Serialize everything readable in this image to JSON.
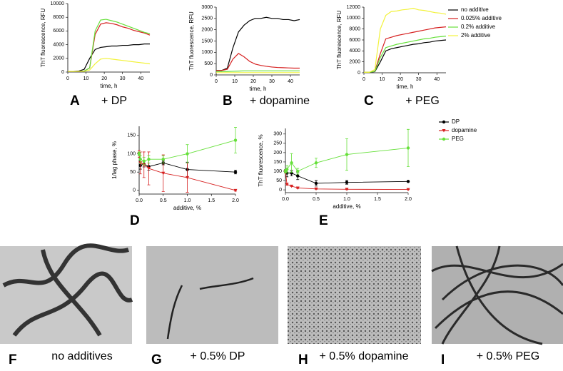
{
  "chart_data": [
    {
      "type": "line",
      "panel_label": "A",
      "caption": "+ DP",
      "xlabel": "time, h",
      "ylabel": "ThT fluorescence, RFU",
      "x": [
        0,
        3,
        6,
        9,
        12,
        15,
        18,
        21,
        24,
        27,
        30,
        33,
        36,
        39,
        42,
        45
      ],
      "xlim": [
        0,
        45
      ],
      "xticks": [
        0,
        10,
        20,
        30,
        40
      ],
      "ylim": [
        0,
        10000
      ],
      "yticks": [
        0,
        2000,
        4000,
        6000,
        8000,
        10000
      ],
      "series": [
        {
          "color": "#000000",
          "values": [
            100,
            100,
            150,
            400,
            2000,
            3300,
            3600,
            3700,
            3800,
            3800,
            3900,
            3900,
            4000,
            4000,
            4100,
            4100
          ]
        },
        {
          "color": "#d62020",
          "values": [
            100,
            100,
            100,
            150,
            600,
            5500,
            7000,
            7200,
            7100,
            6900,
            6600,
            6400,
            6100,
            5900,
            5700,
            5400
          ]
        },
        {
          "color": "#66e03a",
          "values": [
            100,
            100,
            100,
            150,
            600,
            6000,
            7600,
            7700,
            7500,
            7300,
            7000,
            6700,
            6400,
            6100,
            5800,
            5600
          ]
        },
        {
          "color": "#f2f23a",
          "values": [
            100,
            100,
            100,
            100,
            300,
            1200,
            1900,
            2000,
            1900,
            1800,
            1700,
            1600,
            1500,
            1400,
            1300,
            1200
          ]
        }
      ]
    },
    {
      "type": "line",
      "panel_label": "B",
      "caption": "+ dopamine",
      "xlabel": "time, h",
      "ylabel": "ThT fluorescence, RFU",
      "x": [
        0,
        3,
        6,
        9,
        12,
        15,
        18,
        21,
        24,
        27,
        30,
        33,
        36,
        39,
        42,
        45
      ],
      "xlim": [
        0,
        45
      ],
      "xticks": [
        0,
        10,
        20,
        30,
        40
      ],
      "ylim": [
        0,
        3000
      ],
      "yticks": [
        0,
        500,
        1000,
        1500,
        2000,
        2500,
        3000
      ],
      "series": [
        {
          "color": "#000000",
          "values": [
            200,
            200,
            300,
            1200,
            1900,
            2200,
            2400,
            2500,
            2500,
            2550,
            2500,
            2500,
            2450,
            2450,
            2400,
            2450
          ]
        },
        {
          "color": "#d62020",
          "values": [
            200,
            200,
            250,
            700,
            950,
            800,
            600,
            480,
            420,
            380,
            350,
            330,
            320,
            310,
            300,
            300
          ]
        },
        {
          "color": "#66e03a",
          "values": [
            150,
            150,
            150,
            160,
            170,
            180,
            180,
            180,
            180,
            180,
            180,
            180,
            180,
            180,
            180,
            180
          ]
        },
        {
          "color": "#f2f23a",
          "values": [
            100,
            100,
            100,
            100,
            100,
            100,
            100,
            100,
            100,
            100,
            100,
            100,
            100,
            100,
            100,
            100
          ]
        }
      ]
    },
    {
      "type": "line",
      "panel_label": "C",
      "caption": "+ PEG",
      "xlabel": "time, h",
      "ylabel": "ThT fluorescence, RFU",
      "x": [
        0,
        3,
        6,
        9,
        12,
        15,
        18,
        21,
        24,
        27,
        30,
        33,
        36,
        39,
        42,
        45
      ],
      "xlim": [
        0,
        45
      ],
      "xticks": [
        0,
        10,
        20,
        30,
        40
      ],
      "ylim": [
        0,
        12000
      ],
      "yticks": [
        0,
        2000,
        4000,
        6000,
        8000,
        10000,
        12000
      ],
      "legend": "right",
      "series": [
        {
          "name": "no additive",
          "color": "#000000",
          "values": [
            100,
            100,
            200,
            2000,
            4000,
            4400,
            4600,
            4800,
            5000,
            5200,
            5300,
            5500,
            5600,
            5800,
            5900,
            6000
          ]
        },
        {
          "name": "0.025% additive",
          "color": "#d62020",
          "values": [
            100,
            100,
            300,
            3500,
            6200,
            6500,
            6800,
            7000,
            7200,
            7400,
            7600,
            7800,
            8000,
            8200,
            8300,
            8400
          ]
        },
        {
          "name": "0.2% additive",
          "color": "#66e03a",
          "values": [
            100,
            100,
            250,
            2800,
            4600,
            4900,
            5200,
            5400,
            5600,
            5800,
            6000,
            6200,
            6300,
            6500,
            6600,
            6700
          ]
        },
        {
          "name": "2% additive",
          "color": "#f2f23a",
          "values": [
            100,
            100,
            600,
            8000,
            10500,
            11200,
            11300,
            11500,
            11600,
            11800,
            11500,
            11400,
            11200,
            11000,
            10900,
            10700
          ]
        }
      ]
    },
    {
      "type": "line",
      "panel_label": "D",
      "xlabel": "additive, %",
      "ylabel": "1/lag phase, %",
      "markers": true,
      "x": [
        0,
        0.025,
        0.1,
        0.2,
        0.5,
        1,
        2
      ],
      "xlim": [
        0,
        2
      ],
      "xticks": [
        {
          "value": 0,
          "label": "0.0"
        },
        0.5,
        {
          "value": 1,
          "label": "1.0"
        },
        1.5,
        {
          "value": 2,
          "label": "2.0"
        }
      ],
      "ylim": [
        -10,
        175
      ],
      "yticks": [
        0,
        50,
        100,
        150
      ],
      "series": [
        {
          "color": "#000000",
          "marker": "circle",
          "values": [
            100,
            68,
            72,
            65,
            75,
            57,
            50
          ],
          "errors": [
            5,
            10,
            8,
            10,
            5,
            20,
            5
          ]
        },
        {
          "color": "#d62020",
          "marker": "triangle",
          "values": [
            100,
            75,
            70,
            60,
            47,
            35,
            0
          ],
          "errors": [
            10,
            30,
            35,
            45,
            50,
            40,
            2
          ]
        },
        {
          "color": "#66e03a",
          "marker": "circle",
          "values": [
            100,
            85,
            80,
            85,
            85,
            100,
            137
          ],
          "errors": [
            5,
            10,
            10,
            10,
            10,
            25,
            35
          ]
        }
      ]
    },
    {
      "type": "line",
      "panel_label": "E",
      "xlabel": "additive, %",
      "ylabel": "ThT fluorescence, %",
      "markers": true,
      "x": [
        0,
        0.025,
        0.1,
        0.2,
        0.5,
        1,
        2
      ],
      "xlim": [
        0,
        2
      ],
      "xticks": [
        {
          "value": 0,
          "label": "0.0"
        },
        0.5,
        {
          "value": 1,
          "label": "1.0"
        },
        1.5,
        {
          "value": 2,
          "label": "2.0"
        }
      ],
      "ylim": [
        -15,
        330
      ],
      "yticks": [
        0,
        50,
        100,
        150,
        200,
        250,
        300
      ],
      "legend": "right",
      "series": [
        {
          "name": "DP",
          "color": "#000000",
          "marker": "circle",
          "values": [
            100,
            90,
            90,
            75,
            35,
            40,
            45
          ],
          "errors": [
            10,
            20,
            15,
            20,
            15,
            10,
            3
          ]
        },
        {
          "name": "dopamine",
          "color": "#d62020",
          "marker": "triangle",
          "values": [
            100,
            30,
            20,
            10,
            5,
            3,
            2
          ],
          "errors": [
            5,
            5,
            3,
            3,
            2,
            2,
            1
          ]
        },
        {
          "name": "PEG",
          "color": "#66e03a",
          "marker": "circle",
          "values": [
            100,
            110,
            145,
            100,
            145,
            190,
            225
          ],
          "errors": [
            10,
            20,
            50,
            15,
            25,
            85,
            100
          ]
        }
      ]
    }
  ],
  "images": [
    {
      "letter": "F",
      "caption": "no additives"
    },
    {
      "letter": "G",
      "caption": "+ 0.5% DP"
    },
    {
      "letter": "H",
      "caption": "+ 0.5% dopamine"
    },
    {
      "letter": "I",
      "caption": "+ 0.5% PEG"
    }
  ]
}
